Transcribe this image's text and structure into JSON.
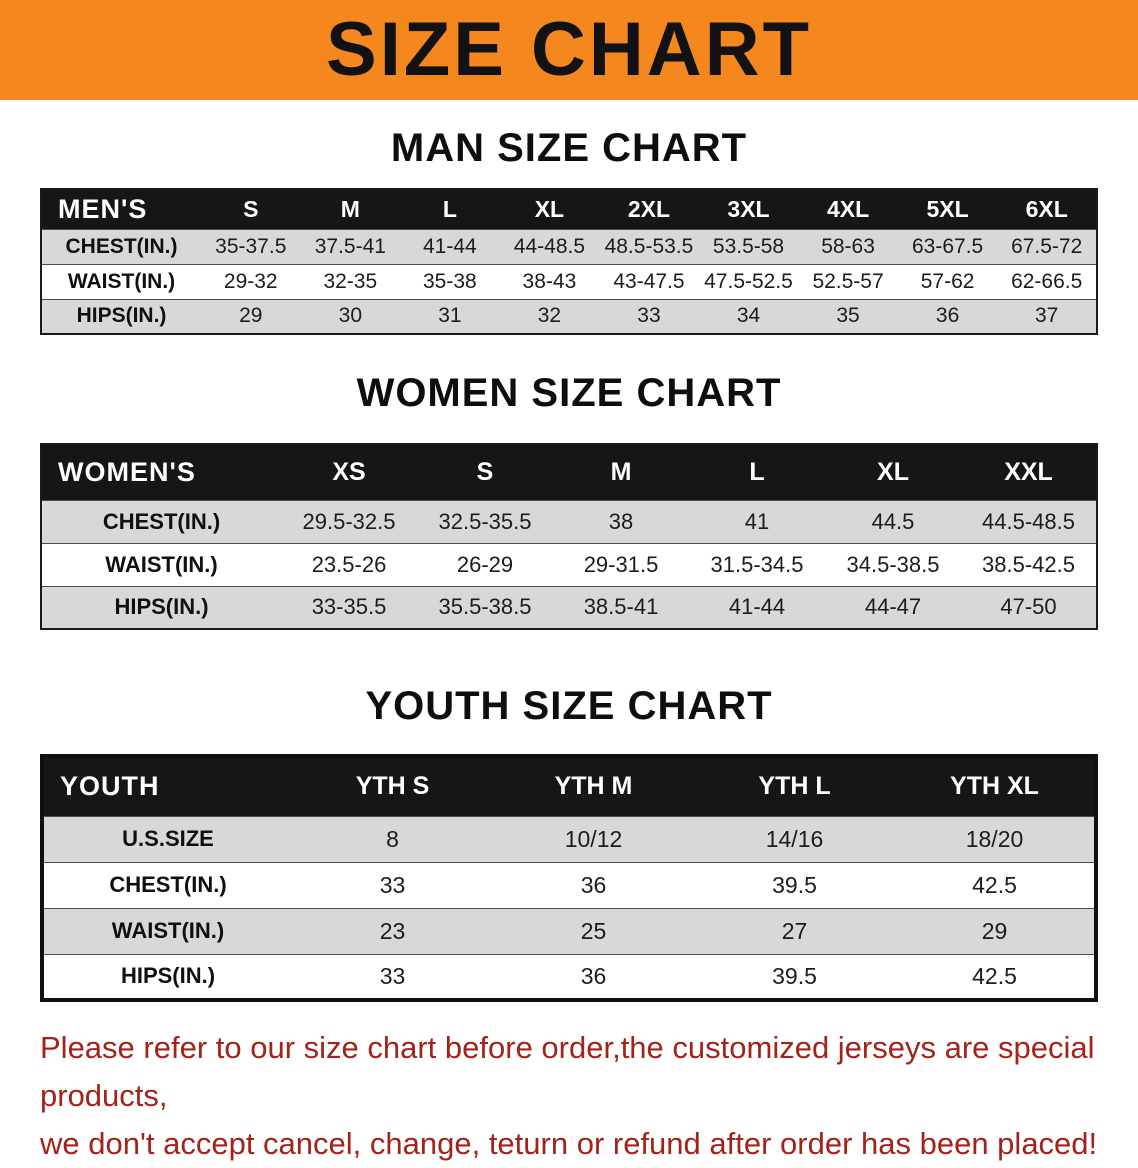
{
  "banner": {
    "title": "SIZE CHART"
  },
  "colors": {
    "banner_bg": "#f5871f",
    "header_bg": "#161616",
    "row_alt": "#d8d8d8",
    "note_red": "#a3231a"
  },
  "sections": [
    {
      "title": "MAN SIZE CHART",
      "table": {
        "header": [
          "MEN'S",
          "S",
          "M",
          "L",
          "XL",
          "2XL",
          "3XL",
          "4XL",
          "5XL",
          "6XL"
        ],
        "rows": [
          [
            "CHEST(IN.)",
            "35-37.5",
            "37.5-41",
            "41-44",
            "44-48.5",
            "48.5-53.5",
            "53.5-58",
            "58-63",
            "63-67.5",
            "67.5-72"
          ],
          [
            "WAIST(IN.)",
            "29-32",
            "32-35",
            "35-38",
            "38-43",
            "43-47.5",
            "47.5-52.5",
            "52.5-57",
            "57-62",
            "62-66.5"
          ],
          [
            "HIPS(IN.)",
            "29",
            "30",
            "31",
            "32",
            "33",
            "34",
            "35",
            "36",
            "37"
          ]
        ]
      }
    },
    {
      "title": "WOMEN SIZE CHART",
      "table": {
        "header": [
          "WOMEN'S",
          "XS",
          "S",
          "M",
          "L",
          "XL",
          "XXL"
        ],
        "rows": [
          [
            "CHEST(IN.)",
            "29.5-32.5",
            "32.5-35.5",
            "38",
            "41",
            "44.5",
            "44.5-48.5"
          ],
          [
            "WAIST(IN.)",
            "23.5-26",
            "26-29",
            "29-31.5",
            "31.5-34.5",
            "34.5-38.5",
            "38.5-42.5"
          ],
          [
            "HIPS(IN.)",
            "33-35.5",
            "35.5-38.5",
            "38.5-41",
            "41-44",
            "44-47",
            "47-50"
          ]
        ]
      }
    },
    {
      "title": "YOUTH SIZE CHART",
      "table": {
        "header": [
          "YOUTH",
          "YTH S",
          "YTH M",
          "YTH L",
          "YTH XL"
        ],
        "rows": [
          [
            "U.S.SIZE",
            "8",
            "10/12",
            "14/16",
            "18/20"
          ],
          [
            "CHEST(IN.)",
            "33",
            "36",
            "39.5",
            "42.5"
          ],
          [
            "WAIST(IN.)",
            "23",
            "25",
            "27",
            "29"
          ],
          [
            "HIPS(IN.)",
            "33",
            "36",
            "39.5",
            "42.5"
          ]
        ]
      }
    }
  ],
  "note": {
    "line1": "Please refer to our size chart before order,the customized jerseys are special products,",
    "line2": "we don't accept cancel, change, teturn or refund after order has been placed!"
  }
}
